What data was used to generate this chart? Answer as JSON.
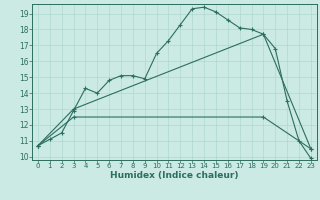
{
  "xlabel": "Humidex (Indice chaleur)",
  "xlim": [
    -0.5,
    23.5
  ],
  "ylim": [
    9.8,
    19.6
  ],
  "yticks": [
    10,
    11,
    12,
    13,
    14,
    15,
    16,
    17,
    18,
    19
  ],
  "xticks": [
    0,
    1,
    2,
    3,
    4,
    5,
    6,
    7,
    8,
    9,
    10,
    11,
    12,
    13,
    14,
    15,
    16,
    17,
    18,
    19,
    20,
    21,
    22,
    23
  ],
  "bg_color": "#caeae3",
  "line_color": "#2d6e5e",
  "grid_color": "#b0d8d0",
  "line1_x": [
    0,
    1,
    2,
    3,
    4,
    5,
    6,
    7,
    8,
    9,
    10,
    11,
    12,
    13,
    14,
    15,
    16,
    17,
    18,
    19,
    20,
    21,
    22,
    23
  ],
  "line1_y": [
    10.7,
    11.1,
    11.5,
    12.9,
    14.3,
    14.0,
    14.8,
    15.1,
    15.1,
    14.9,
    16.5,
    17.3,
    18.3,
    19.3,
    19.4,
    19.1,
    18.6,
    18.1,
    18.0,
    17.7,
    16.8,
    13.5,
    11.0,
    9.9
  ],
  "line2_x": [
    0,
    3,
    19,
    23
  ],
  "line2_y": [
    10.7,
    13.0,
    17.7,
    10.5
  ],
  "line3_x": [
    0,
    3,
    19,
    23
  ],
  "line3_y": [
    10.7,
    12.5,
    12.5,
    10.5
  ]
}
